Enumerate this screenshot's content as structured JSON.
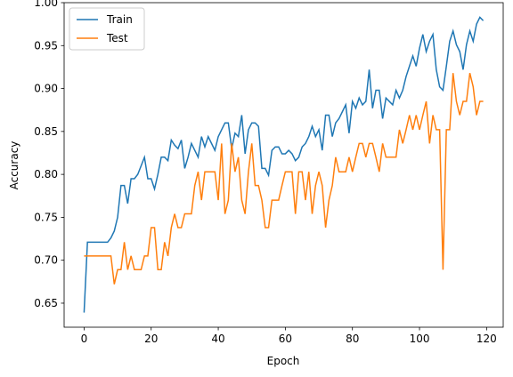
{
  "chart_data": {
    "type": "line",
    "xlabel": "Epoch",
    "ylabel": "Accuracy",
    "x": [
      0,
      1,
      2,
      3,
      4,
      5,
      6,
      7,
      8,
      9,
      10,
      11,
      12,
      13,
      14,
      15,
      16,
      17,
      18,
      19,
      20,
      21,
      22,
      23,
      24,
      25,
      26,
      27,
      28,
      29,
      30,
      31,
      32,
      33,
      34,
      35,
      36,
      37,
      38,
      39,
      40,
      41,
      42,
      43,
      44,
      45,
      46,
      47,
      48,
      49,
      50,
      51,
      52,
      53,
      54,
      55,
      56,
      57,
      58,
      59,
      60,
      61,
      62,
      63,
      64,
      65,
      66,
      67,
      68,
      69,
      70,
      71,
      72,
      73,
      74,
      75,
      76,
      77,
      78,
      79,
      80,
      81,
      82,
      83,
      84,
      85,
      86,
      87,
      88,
      89,
      90,
      91,
      92,
      93,
      94,
      95,
      96,
      97,
      98,
      99,
      100,
      101,
      102,
      103,
      104,
      105,
      106,
      107,
      108,
      109,
      110,
      111,
      112,
      113,
      114,
      115,
      116,
      117,
      118,
      119
    ],
    "series": [
      {
        "name": "Train",
        "color": "#1f77b4",
        "values": [
          0.639,
          0.721,
          0.721,
          0.721,
          0.721,
          0.721,
          0.721,
          0.721,
          0.726,
          0.734,
          0.75,
          0.787,
          0.787,
          0.766,
          0.795,
          0.795,
          0.8,
          0.81,
          0.82,
          0.795,
          0.795,
          0.783,
          0.8,
          0.82,
          0.82,
          0.816,
          0.84,
          0.834,
          0.83,
          0.84,
          0.807,
          0.82,
          0.836,
          0.828,
          0.82,
          0.844,
          0.832,
          0.844,
          0.836,
          0.828,
          0.844,
          0.852,
          0.86,
          0.86,
          0.83,
          0.848,
          0.844,
          0.869,
          0.824,
          0.852,
          0.86,
          0.86,
          0.856,
          0.807,
          0.807,
          0.799,
          0.828,
          0.832,
          0.832,
          0.824,
          0.824,
          0.828,
          0.824,
          0.816,
          0.82,
          0.832,
          0.836,
          0.844,
          0.856,
          0.844,
          0.852,
          0.828,
          0.869,
          0.869,
          0.844,
          0.86,
          0.865,
          0.873,
          0.881,
          0.848,
          0.885,
          0.877,
          0.889,
          0.881,
          0.885,
          0.922,
          0.877,
          0.898,
          0.898,
          0.865,
          0.889,
          0.885,
          0.881,
          0.898,
          0.889,
          0.898,
          0.914,
          0.926,
          0.938,
          0.926,
          0.947,
          0.963,
          0.943,
          0.955,
          0.963,
          0.922,
          0.902,
          0.898,
          0.926,
          0.955,
          0.967,
          0.951,
          0.943,
          0.922,
          0.951,
          0.967,
          0.955,
          0.975,
          0.983,
          0.979
        ]
      },
      {
        "name": "Test",
        "color": "#ff7f0e",
        "values": [
          0.705,
          0.705,
          0.705,
          0.705,
          0.705,
          0.705,
          0.705,
          0.705,
          0.705,
          0.672,
          0.689,
          0.689,
          0.721,
          0.689,
          0.705,
          0.689,
          0.689,
          0.689,
          0.705,
          0.705,
          0.738,
          0.738,
          0.689,
          0.689,
          0.721,
          0.705,
          0.738,
          0.754,
          0.738,
          0.738,
          0.754,
          0.754,
          0.754,
          0.787,
          0.803,
          0.77,
          0.803,
          0.803,
          0.803,
          0.803,
          0.77,
          0.836,
          0.754,
          0.77,
          0.836,
          0.803,
          0.82,
          0.77,
          0.754,
          0.803,
          0.836,
          0.787,
          0.787,
          0.77,
          0.738,
          0.738,
          0.77,
          0.77,
          0.77,
          0.787,
          0.803,
          0.803,
          0.803,
          0.754,
          0.803,
          0.803,
          0.77,
          0.803,
          0.754,
          0.787,
          0.803,
          0.787,
          0.738,
          0.77,
          0.787,
          0.82,
          0.803,
          0.803,
          0.803,
          0.82,
          0.803,
          0.82,
          0.836,
          0.836,
          0.82,
          0.836,
          0.836,
          0.82,
          0.803,
          0.836,
          0.82,
          0.82,
          0.82,
          0.82,
          0.852,
          0.836,
          0.852,
          0.869,
          0.852,
          0.869,
          0.852,
          0.869,
          0.885,
          0.836,
          0.869,
          0.852,
          0.852,
          0.689,
          0.852,
          0.852,
          0.918,
          0.885,
          0.869,
          0.885,
          0.885,
          0.918,
          0.902,
          0.869,
          0.885,
          0.885
        ]
      }
    ],
    "xlim": [
      -5.95,
      124.95
    ],
    "xticks": [
      0,
      20,
      40,
      60,
      80,
      100,
      120
    ],
    "ylim": [
      0.622,
      1.0
    ],
    "yticks": [
      0.65,
      {
        "value": 0.7,
        "label": "0.70"
      },
      0.75,
      {
        "value": 0.8,
        "label": "0.80"
      },
      0.85,
      {
        "value": 0.9,
        "label": "0.90"
      },
      0.95,
      {
        "value": 1,
        "label": "1.00"
      }
    ],
    "legend": "upper left"
  }
}
